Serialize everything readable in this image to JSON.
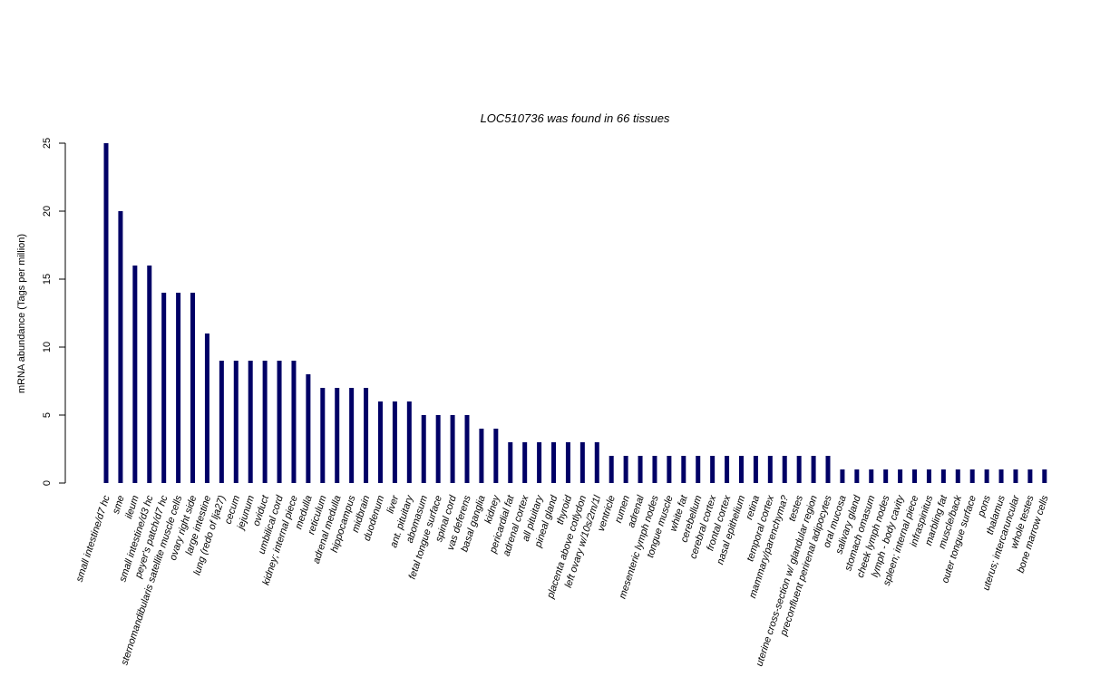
{
  "chart_data": {
    "type": "bar",
    "title": "LOC510736  was found in  66  tissues",
    "xlabel": "",
    "ylabel": "mRNA abundance (Tags per million)",
    "ylim": [
      0,
      25
    ],
    "yticks": [
      0,
      5,
      10,
      15,
      20,
      25
    ],
    "grid": false,
    "bar_color": "#000066",
    "categories": [
      "small intestine/d7 hc",
      "sme",
      "ileum",
      "small intestine/d3 hc",
      "peyer's patch/d7 hc",
      "sternomandibularis satellite muscle cells",
      "ovary right side",
      "large intestine",
      "lung (redo of lja27)",
      "cecum",
      "jejunum",
      "oviduct",
      "umbilical cord",
      "kidney; internal piece",
      "medulla",
      "reticulum",
      "adrenal medulla",
      "hippocampus",
      "midbrain",
      "duodenum",
      "liver",
      "ant. pituitary",
      "abomasum",
      "fetal tongue surface",
      "spinal cord",
      "vas deferens",
      "basal ganglia",
      "kidney",
      "pericardial fat",
      "adrenal cortex",
      "all pituitary",
      "pineal gland",
      "thyroid",
      "placenta above cotlydon",
      "left ovary w/10s/2m/1l",
      "ventricle",
      "rumen",
      "adrenal",
      "mesenteric lymph nodes",
      "tongue muscle",
      "white fat",
      "cerebellum",
      "cerebral cortex",
      "frontal cortex",
      "nasal epithelium",
      "retina",
      "temporal cortex",
      "mammary/parenchyma?",
      "testes",
      "uterine cross-section w/ glandular region",
      "preconfluent perirenal adipocytes",
      "oral mucosa",
      "salivary gland",
      "stomach omasum",
      "cheek lymph nodes",
      "lymph - body cavity",
      "spleen; internal piece",
      "infraspinitus",
      "marbling fat",
      "muscle/back",
      "outer tongue surface",
      "pons",
      "thalamus",
      "uterus; intercaruncular",
      "whole testes",
      "bone marrow cells"
    ],
    "values": [
      25,
      20,
      16,
      16,
      14,
      14,
      14,
      11,
      9,
      9,
      9,
      9,
      9,
      9,
      8,
      7,
      7,
      7,
      7,
      6,
      6,
      6,
      5,
      5,
      5,
      5,
      4,
      4,
      3,
      3,
      3,
      3,
      3,
      3,
      3,
      2,
      2,
      2,
      2,
      2,
      2,
      2,
      2,
      2,
      2,
      2,
      2,
      2,
      2,
      2,
      2,
      1,
      1,
      1,
      1,
      1,
      1,
      1,
      1,
      1,
      1,
      1,
      1,
      1,
      1,
      1
    ]
  }
}
